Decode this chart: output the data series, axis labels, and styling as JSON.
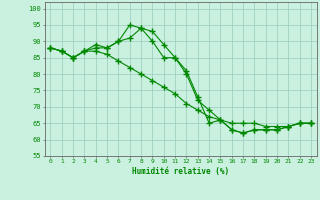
{
  "xlabel": "Humidité relative (%)",
  "background_color": "#caf0e0",
  "grid_color": "#99ccbb",
  "line_color": "#008800",
  "xlim": [
    -0.5,
    23.5
  ],
  "ylim": [
    55,
    102
  ],
  "yticks": [
    55,
    60,
    65,
    70,
    75,
    80,
    85,
    90,
    95,
    100
  ],
  "xticks": [
    0,
    1,
    2,
    3,
    4,
    5,
    6,
    7,
    8,
    9,
    10,
    11,
    12,
    13,
    14,
    15,
    16,
    17,
    18,
    19,
    20,
    21,
    22,
    23
  ],
  "line1": [
    88,
    87,
    85,
    87,
    89,
    88,
    90,
    95,
    94,
    93,
    89,
    85,
    81,
    73,
    65,
    66,
    63,
    62,
    63,
    63,
    63,
    64,
    65,
    65
  ],
  "line2": [
    88,
    87,
    85,
    87,
    88,
    88,
    90,
    91,
    94,
    90,
    85,
    85,
    80,
    72,
    69,
    66,
    63,
    62,
    63,
    63,
    63,
    64,
    65,
    65
  ],
  "line3": [
    88,
    87,
    85,
    87,
    87,
    86,
    84,
    82,
    80,
    78,
    76,
    74,
    71,
    69,
    67,
    66,
    65,
    65,
    65,
    64,
    64,
    64,
    65,
    65
  ]
}
